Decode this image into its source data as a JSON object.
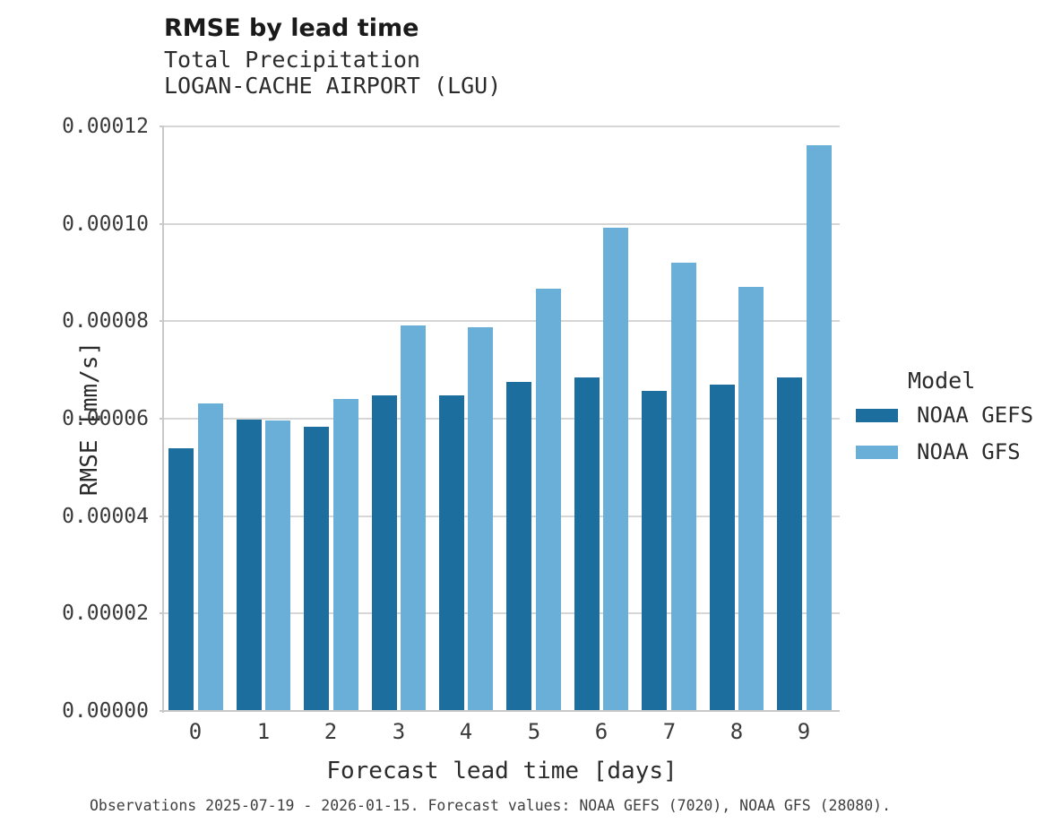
{
  "caption": "Observations 2025-07-19 - 2026-01-15. Forecast values: NOAA GEFS (7020), NOAA GFS (28080).",
  "legend": {
    "title": "Model"
  },
  "chart_data": {
    "type": "bar",
    "title": "RMSE by lead time",
    "subtitle": "Total Precipitation",
    "station": "LOGAN-CACHE AIRPORT (LGU)",
    "xlabel": "Forecast lead time [days]",
    "ylabel": "RMSE [mm/s]",
    "categories": [
      "0",
      "1",
      "2",
      "3",
      "4",
      "5",
      "6",
      "7",
      "8",
      "9"
    ],
    "series": [
      {
        "name": "NOAA GEFS",
        "color": "#1b6e9e",
        "values": [
          5.38e-05,
          5.96e-05,
          5.82e-05,
          6.46e-05,
          6.46e-05,
          6.73e-05,
          6.82e-05,
          6.55e-05,
          6.68e-05,
          6.82e-05
        ]
      },
      {
        "name": "NOAA GFS",
        "color": "#69afd8",
        "values": [
          6.3e-05,
          5.95e-05,
          6.38e-05,
          7.9e-05,
          7.85e-05,
          8.65e-05,
          9.91e-05,
          9.18e-05,
          8.68e-05,
          0.000116
        ]
      }
    ],
    "ylim": [
      0,
      0.00012
    ],
    "yticks": [
      {
        "value": 0.0,
        "label": "0.00000"
      },
      {
        "value": 2e-05,
        "label": "0.00002"
      },
      {
        "value": 4e-05,
        "label": "0.00004"
      },
      {
        "value": 6e-05,
        "label": "0.00006"
      },
      {
        "value": 8e-05,
        "label": "0.00008"
      },
      {
        "value": 0.0001,
        "label": "0.00010"
      },
      {
        "value": 0.00012,
        "label": "0.00012"
      }
    ],
    "grid": "horizontal",
    "legend_position": "right"
  }
}
